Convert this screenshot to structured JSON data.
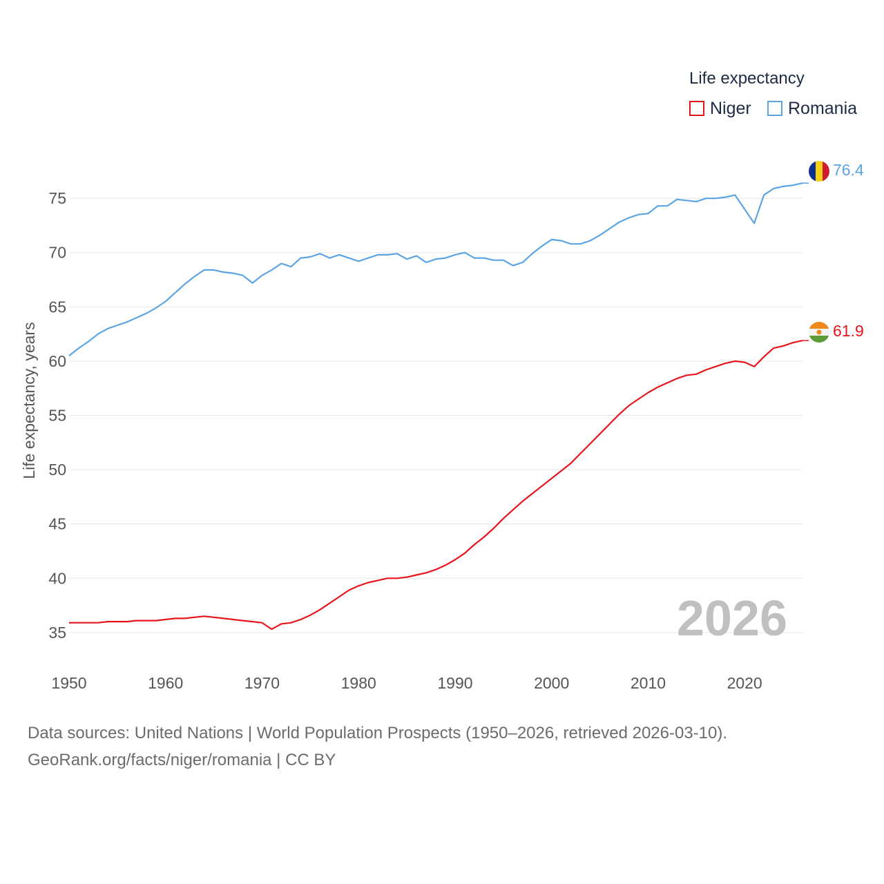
{
  "legend": {
    "title": "Life expectancy",
    "items": [
      {
        "label": "Niger",
        "color": "#e8141b"
      },
      {
        "label": "Romania",
        "color": "#5ba4e4"
      }
    ]
  },
  "source": {
    "line1": "Data sources: United Nations | World Population Prospects (1950–2026, retrieved 2026-03-10).",
    "line2": "GeoRank.org/facts/niger/romania | CC BY"
  },
  "chart_data": {
    "type": "line",
    "title": "Life expectancy",
    "xlabel": "",
    "ylabel": "Life expectancy, years",
    "year_watermark": "2026",
    "xlim": [
      1950,
      2026
    ],
    "ylim": [
      32,
      78
    ],
    "x_ticks": [
      1950,
      1960,
      1970,
      1980,
      1990,
      2000,
      2010,
      2020
    ],
    "y_ticks": [
      35,
      40,
      45,
      50,
      55,
      60,
      65,
      70,
      75
    ],
    "grid": true,
    "legend_position": "top-right",
    "x": [
      1950,
      1951,
      1952,
      1953,
      1954,
      1955,
      1956,
      1957,
      1958,
      1959,
      1960,
      1961,
      1962,
      1963,
      1964,
      1965,
      1966,
      1967,
      1968,
      1969,
      1970,
      1971,
      1972,
      1973,
      1974,
      1975,
      1976,
      1977,
      1978,
      1979,
      1980,
      1981,
      1982,
      1983,
      1984,
      1985,
      1986,
      1987,
      1988,
      1989,
      1990,
      1991,
      1992,
      1993,
      1994,
      1995,
      1996,
      1997,
      1998,
      1999,
      2000,
      2001,
      2002,
      2003,
      2004,
      2005,
      2006,
      2007,
      2008,
      2009,
      2010,
      2011,
      2012,
      2013,
      2014,
      2015,
      2016,
      2017,
      2018,
      2019,
      2020,
      2021,
      2022,
      2023,
      2024,
      2025,
      2026
    ],
    "series": [
      {
        "name": "Niger",
        "color": "#e8141b",
        "end_label": "61.9",
        "values": [
          35.9,
          35.9,
          35.9,
          35.9,
          36.0,
          36.0,
          36.0,
          36.1,
          36.1,
          36.1,
          36.2,
          36.3,
          36.3,
          36.4,
          36.5,
          36.4,
          36.3,
          36.2,
          36.1,
          36.0,
          35.9,
          35.3,
          35.8,
          35.9,
          36.2,
          36.6,
          37.1,
          37.7,
          38.3,
          38.9,
          39.3,
          39.6,
          39.8,
          40.0,
          40.0,
          40.1,
          40.3,
          40.5,
          40.8,
          41.2,
          41.7,
          42.3,
          43.1,
          43.8,
          44.6,
          45.5,
          46.3,
          47.1,
          47.8,
          48.5,
          49.2,
          49.9,
          50.6,
          51.5,
          52.4,
          53.3,
          54.2,
          55.1,
          55.9,
          56.5,
          57.1,
          57.6,
          58.0,
          58.4,
          58.7,
          58.8,
          59.2,
          59.5,
          59.8,
          60.0,
          59.9,
          59.5,
          60.4,
          61.2,
          61.4,
          61.7,
          61.9
        ]
      },
      {
        "name": "Romania",
        "color": "#5ba4e4",
        "end_label": "76.4",
        "values": [
          60.5,
          61.2,
          61.8,
          62.5,
          63.0,
          63.3,
          63.6,
          64.0,
          64.4,
          64.9,
          65.5,
          66.3,
          67.1,
          67.8,
          68.4,
          68.4,
          68.2,
          68.1,
          67.9,
          67.2,
          67.9,
          68.4,
          69.0,
          68.7,
          69.5,
          69.6,
          69.9,
          69.5,
          69.8,
          69.5,
          69.2,
          69.5,
          69.8,
          69.8,
          69.9,
          69.4,
          69.7,
          69.1,
          69.4,
          69.5,
          69.8,
          70.0,
          69.5,
          69.5,
          69.3,
          69.3,
          68.8,
          69.1,
          69.9,
          70.6,
          71.2,
          71.1,
          70.8,
          70.8,
          71.1,
          71.6,
          72.2,
          72.8,
          73.2,
          73.5,
          73.6,
          74.3,
          74.3,
          74.9,
          74.8,
          74.7,
          75.0,
          75.0,
          75.1,
          75.3,
          74.0,
          72.7,
          75.3,
          75.9,
          76.1,
          76.2,
          76.4
        ]
      }
    ]
  }
}
